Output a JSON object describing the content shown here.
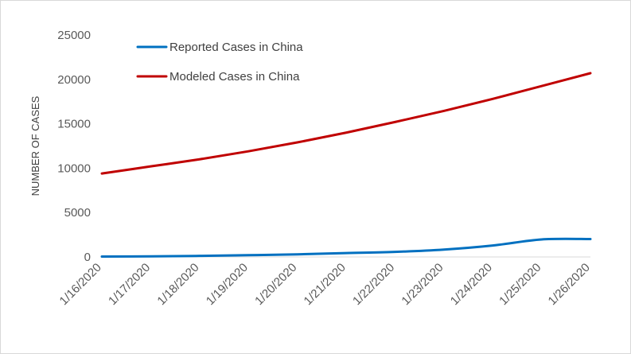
{
  "chart_data": {
    "type": "line",
    "title": "",
    "xlabel": "",
    "ylabel": "NUMBER OF CASES",
    "ylim": [
      0,
      25000
    ],
    "yticks": [
      0,
      5000,
      10000,
      15000,
      20000,
      25000
    ],
    "grid": false,
    "legend_position": "top-left",
    "x": [
      "1/16/2020",
      "1/17/2020",
      "1/18/2020",
      "1/19/2020",
      "1/20/2020",
      "1/21/2020",
      "1/22/2020",
      "1/23/2020",
      "1/24/2020",
      "1/25/2020",
      "1/26/2020"
    ],
    "series": [
      {
        "name": "Reported Cases in China",
        "color": "#0070c0",
        "values": [
          45,
          62,
          121,
          198,
          291,
          440,
          571,
          830,
          1287,
          1975,
          2016
        ]
      },
      {
        "name": "Modeled Cases in China",
        "color": "#c00000",
        "values": [
          9400,
          10200,
          11000,
          11900,
          12900,
          14000,
          15200,
          16450,
          17800,
          19250,
          20700
        ]
      }
    ]
  }
}
